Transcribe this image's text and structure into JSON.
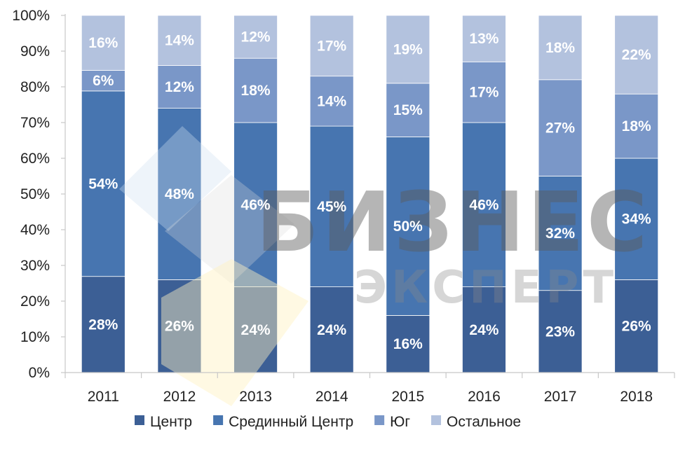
{
  "chart_data": {
    "type": "bar",
    "stacked": true,
    "percent_stacked": true,
    "categories": [
      "2011",
      "2012",
      "2013",
      "2014",
      "2015",
      "2016",
      "2017",
      "2018"
    ],
    "series": [
      {
        "name": "Центр",
        "color": "#3c5f95",
        "values": [
          28,
          26,
          24,
          24,
          16,
          24,
          23,
          26
        ],
        "labels": [
          "28%",
          "26%",
          "24%",
          "24%",
          "16%",
          "24%",
          "23%",
          "26%"
        ]
      },
      {
        "name": "Срединный Центр",
        "color": "#4775b0",
        "values": [
          54,
          48,
          46,
          45,
          50,
          46,
          32,
          34
        ],
        "labels": [
          "54%",
          "48%",
          "46%",
          "45%",
          "50%",
          "46%",
          "32%",
          "34%"
        ]
      },
      {
        "name": "Юг",
        "color": "#7a97c8",
        "values": [
          6,
          12,
          18,
          14,
          15,
          17,
          27,
          18
        ],
        "labels": [
          "6%",
          "12%",
          "18%",
          "14%",
          "15%",
          "17%",
          "27%",
          "18%"
        ]
      },
      {
        "name": "Остальное",
        "color": "#b3c2de",
        "values": [
          16,
          14,
          12,
          17,
          19,
          13,
          18,
          22
        ],
        "labels": [
          "16%",
          "14%",
          "12%",
          "17%",
          "19%",
          "13%",
          "18%",
          "22%"
        ]
      }
    ],
    "y_ticks": [
      "0%",
      "10%",
      "20%",
      "30%",
      "40%",
      "50%",
      "60%",
      "70%",
      "80%",
      "90%",
      "100%"
    ],
    "ylim": [
      0,
      100
    ],
    "grid": false,
    "legend": "bottom",
    "title": "",
    "xlabel": "",
    "ylabel": ""
  },
  "watermark": {
    "line1": "БИЗНЕС",
    "line2": "ЭКСПЕРТ"
  }
}
